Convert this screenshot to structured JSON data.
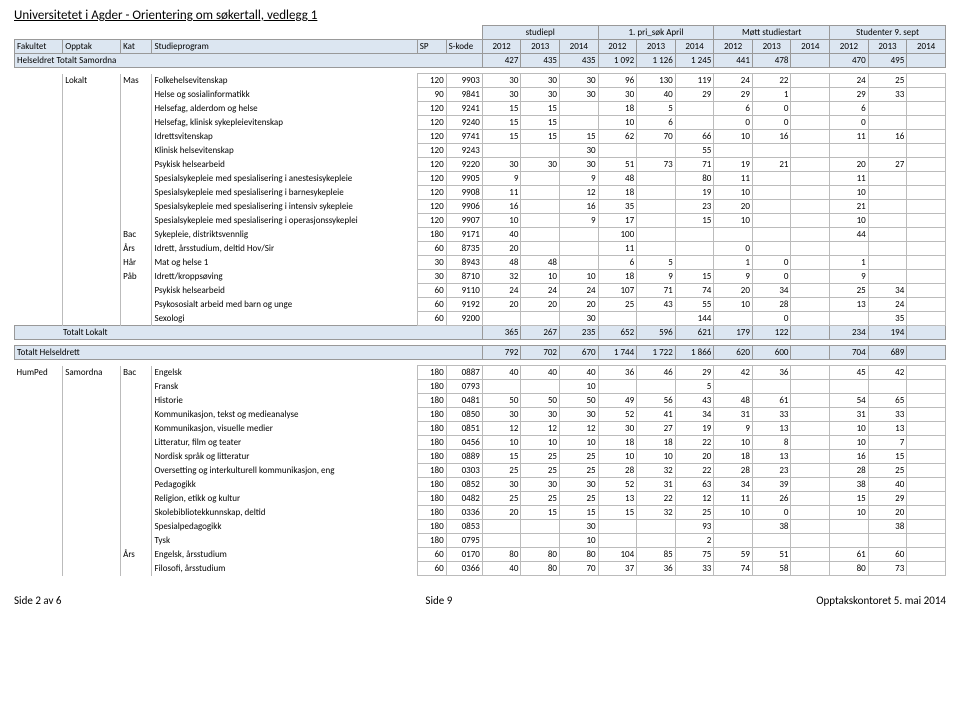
{
  "page_title": "Universitetet i Agder - Orientering om søkertall, vedlegg 1",
  "col_groups": [
    "studiepl",
    "1. pri_søk April",
    "Møtt studiestart",
    "Studenter 9. sept"
  ],
  "col_labels": [
    "Fakultet",
    "Opptak",
    "Kat",
    "Studieprogram",
    "SP",
    "S-kode",
    "2012",
    "2013",
    "2014",
    "2012",
    "2013",
    "2014",
    "2012",
    "2013",
    "2014",
    "2012",
    "2013",
    "2014"
  ],
  "totalsamordna": {
    "label": "Helseldret Totalt Samordna",
    "vals": [
      "427",
      "435",
      "435",
      "1 092",
      "1 126",
      "1 245",
      "441",
      "478",
      "",
      "470",
      "495",
      ""
    ]
  },
  "rows_lokalt": [
    {
      "kat": "Mas",
      "prog": "Folkehelsevitenskap",
      "sp": "120",
      "sk": "9903",
      "v": [
        "30",
        "30",
        "30",
        "96",
        "130",
        "119",
        "24",
        "22",
        "",
        "24",
        "25",
        ""
      ]
    },
    {
      "kat": "",
      "prog": "Helse og sosialinformatikk",
      "sp": "90",
      "sk": "9841",
      "v": [
        "30",
        "30",
        "30",
        "30",
        "40",
        "29",
        "29",
        "1",
        "",
        "29",
        "33",
        ""
      ]
    },
    {
      "kat": "",
      "prog": "Helsefag, alderdom og helse",
      "sp": "120",
      "sk": "9241",
      "v": [
        "15",
        "15",
        "",
        "18",
        "5",
        "",
        "6",
        "0",
        "",
        "6",
        "",
        ""
      ]
    },
    {
      "kat": "",
      "prog": "Helsefag, klinisk sykepleievitenskap",
      "sp": "120",
      "sk": "9240",
      "v": [
        "15",
        "15",
        "",
        "10",
        "6",
        "",
        "0",
        "0",
        "",
        "0",
        "",
        ""
      ]
    },
    {
      "kat": "",
      "prog": "Idrettsvitenskap",
      "sp": "120",
      "sk": "9741",
      "v": [
        "15",
        "15",
        "15",
        "62",
        "70",
        "66",
        "10",
        "16",
        "",
        "11",
        "16",
        ""
      ]
    },
    {
      "kat": "",
      "prog": "Klinisk helsevitenskap",
      "sp": "120",
      "sk": "9243",
      "v": [
        "",
        "",
        "30",
        "",
        "",
        "55",
        "",
        "",
        "",
        "",
        "",
        ""
      ]
    },
    {
      "kat": "",
      "prog": "Psykisk helsearbeid",
      "sp": "120",
      "sk": "9220",
      "v": [
        "30",
        "30",
        "30",
        "51",
        "73",
        "71",
        "19",
        "21",
        "",
        "20",
        "27",
        ""
      ]
    },
    {
      "kat": "",
      "prog": "Spesialsykepleie med spesialisering i anestesisykepleie",
      "sp": "120",
      "sk": "9905",
      "v": [
        "9",
        "",
        "9",
        "48",
        "",
        "80",
        "11",
        "",
        "",
        "11",
        "",
        ""
      ]
    },
    {
      "kat": "",
      "prog": "Spesialsykepleie med spesialisering i barnesykepleie",
      "sp": "120",
      "sk": "9908",
      "v": [
        "11",
        "",
        "12",
        "18",
        "",
        "19",
        "10",
        "",
        "",
        "10",
        "",
        ""
      ]
    },
    {
      "kat": "",
      "prog": "Spesialsykepleie med spesialisering i intensiv sykepleie",
      "sp": "120",
      "sk": "9906",
      "v": [
        "16",
        "",
        "16",
        "35",
        "",
        "23",
        "20",
        "",
        "",
        "21",
        "",
        ""
      ]
    },
    {
      "kat": "",
      "prog": "Spesialsykepleie med spesialisering i operasjonssykeplei",
      "sp": "120",
      "sk": "9907",
      "v": [
        "10",
        "",
        "9",
        "17",
        "",
        "15",
        "10",
        "",
        "",
        "10",
        "",
        ""
      ]
    },
    {
      "kat": "Bac",
      "prog": "Sykepleie, distriktsvennlig",
      "sp": "180",
      "sk": "9171",
      "v": [
        "40",
        "",
        "",
        "100",
        "",
        "",
        "",
        "",
        "",
        "44",
        "",
        ""
      ]
    },
    {
      "kat": "Års",
      "prog": "Idrett, årsstudium, deltid Hov/Sir",
      "sp": "60",
      "sk": "8735",
      "v": [
        "20",
        "",
        "",
        "11",
        "",
        "",
        "0",
        "",
        "",
        "",
        "",
        ""
      ]
    },
    {
      "kat": "Hår",
      "prog": "Mat og helse 1",
      "sp": "30",
      "sk": "8943",
      "v": [
        "48",
        "48",
        "",
        "6",
        "5",
        "",
        "1",
        "0",
        "",
        "1",
        "",
        ""
      ]
    },
    {
      "kat": "Påb",
      "prog": "Idrett/kroppsøving",
      "sp": "30",
      "sk": "8710",
      "v": [
        "32",
        "10",
        "10",
        "18",
        "9",
        "15",
        "9",
        "0",
        "",
        "9",
        "",
        ""
      ]
    },
    {
      "kat": "",
      "prog": "Psykisk helsearbeid",
      "sp": "60",
      "sk": "9110",
      "v": [
        "24",
        "24",
        "24",
        "107",
        "71",
        "74",
        "20",
        "34",
        "",
        "25",
        "34",
        ""
      ]
    },
    {
      "kat": "",
      "prog": "Psykososialt arbeid med barn og unge",
      "sp": "60",
      "sk": "9192",
      "v": [
        "20",
        "20",
        "20",
        "25",
        "43",
        "55",
        "10",
        "28",
        "",
        "13",
        "24",
        ""
      ]
    },
    {
      "kat": "",
      "prog": "Sexologi",
      "sp": "60",
      "sk": "9200",
      "v": [
        "",
        "",
        "30",
        "",
        "",
        "144",
        "",
        "0",
        "",
        "",
        "35",
        ""
      ]
    }
  ],
  "total_lokalt": {
    "label": "Totalt Lokalt",
    "v": [
      "365",
      "267",
      "235",
      "652",
      "596",
      "621",
      "179",
      "122",
      "",
      "234",
      "194",
      ""
    ]
  },
  "total_helseldrett": {
    "label": "Totalt Helseldrett",
    "v": [
      "792",
      "702",
      "670",
      "1 744",
      "1 722",
      "1 866",
      "620",
      "600",
      "",
      "704",
      "689",
      ""
    ]
  },
  "rows_humped": [
    {
      "kat": "Bac",
      "prog": "Engelsk",
      "sp": "180",
      "sk": "0887",
      "v": [
        "40",
        "40",
        "40",
        "36",
        "46",
        "29",
        "42",
        "36",
        "",
        "45",
        "42",
        ""
      ]
    },
    {
      "kat": "",
      "prog": "Fransk",
      "sp": "180",
      "sk": "0793",
      "v": [
        "",
        "",
        "10",
        "",
        "",
        "5",
        "",
        "",
        "",
        "",
        "",
        ""
      ]
    },
    {
      "kat": "",
      "prog": "Historie",
      "sp": "180",
      "sk": "0481",
      "v": [
        "50",
        "50",
        "50",
        "49",
        "56",
        "43",
        "48",
        "61",
        "",
        "54",
        "65",
        ""
      ]
    },
    {
      "kat": "",
      "prog": "Kommunikasjon, tekst og medieanalyse",
      "sp": "180",
      "sk": "0850",
      "v": [
        "30",
        "30",
        "30",
        "52",
        "41",
        "34",
        "31",
        "33",
        "",
        "31",
        "33",
        ""
      ]
    },
    {
      "kat": "",
      "prog": "Kommunikasjon, visuelle medier",
      "sp": "180",
      "sk": "0851",
      "v": [
        "12",
        "12",
        "12",
        "30",
        "27",
        "19",
        "9",
        "13",
        "",
        "10",
        "13",
        ""
      ]
    },
    {
      "kat": "",
      "prog": "Litteratur, film og teater",
      "sp": "180",
      "sk": "0456",
      "v": [
        "10",
        "10",
        "10",
        "18",
        "18",
        "22",
        "10",
        "8",
        "",
        "10",
        "7",
        ""
      ]
    },
    {
      "kat": "",
      "prog": "Nordisk språk og litteratur",
      "sp": "180",
      "sk": "0889",
      "v": [
        "15",
        "25",
        "25",
        "10",
        "10",
        "20",
        "18",
        "13",
        "",
        "16",
        "15",
        ""
      ]
    },
    {
      "kat": "",
      "prog": "Oversetting og interkulturell kommunikasjon, eng",
      "sp": "180",
      "sk": "0303",
      "v": [
        "25",
        "25",
        "25",
        "28",
        "32",
        "22",
        "28",
        "23",
        "",
        "28",
        "25",
        ""
      ]
    },
    {
      "kat": "",
      "prog": "Pedagogikk",
      "sp": "180",
      "sk": "0852",
      "v": [
        "30",
        "30",
        "30",
        "52",
        "31",
        "63",
        "34",
        "39",
        "",
        "38",
        "40",
        ""
      ]
    },
    {
      "kat": "",
      "prog": "Religion, etikk og kultur",
      "sp": "180",
      "sk": "0482",
      "v": [
        "25",
        "25",
        "25",
        "13",
        "22",
        "12",
        "11",
        "26",
        "",
        "15",
        "29",
        ""
      ]
    },
    {
      "kat": "",
      "prog": "Skolebibliotekkunnskap, deltid",
      "sp": "180",
      "sk": "0336",
      "v": [
        "20",
        "15",
        "15",
        "15",
        "32",
        "25",
        "10",
        "0",
        "",
        "10",
        "20",
        ""
      ]
    },
    {
      "kat": "",
      "prog": "Spesialpedagogikk",
      "sp": "180",
      "sk": "0853",
      "v": [
        "",
        "",
        "30",
        "",
        "",
        "93",
        "",
        "38",
        "",
        "",
        "38",
        ""
      ]
    },
    {
      "kat": "",
      "prog": "Tysk",
      "sp": "180",
      "sk": "0795",
      "v": [
        "",
        "",
        "10",
        "",
        "",
        "2",
        "",
        "",
        "",
        "",
        "",
        ""
      ]
    },
    {
      "kat": "Års",
      "prog": "Engelsk, årsstudium",
      "sp": "60",
      "sk": "0170",
      "v": [
        "80",
        "80",
        "80",
        "104",
        "85",
        "75",
        "59",
        "51",
        "",
        "61",
        "60",
        ""
      ]
    },
    {
      "kat": "",
      "prog": "Filosofi, årsstudium",
      "sp": "60",
      "sk": "0366",
      "v": [
        "40",
        "80",
        "70",
        "37",
        "36",
        "33",
        "74",
        "58",
        "",
        "80",
        "73",
        ""
      ]
    }
  ],
  "lokalt_label": "Lokalt",
  "humped_label": "HumPed",
  "samordna_label": "Samordna",
  "footer": {
    "left": "Side 2 av 6",
    "center": "Side 9",
    "right": "Opptakskontoret 5. mai 2014"
  }
}
